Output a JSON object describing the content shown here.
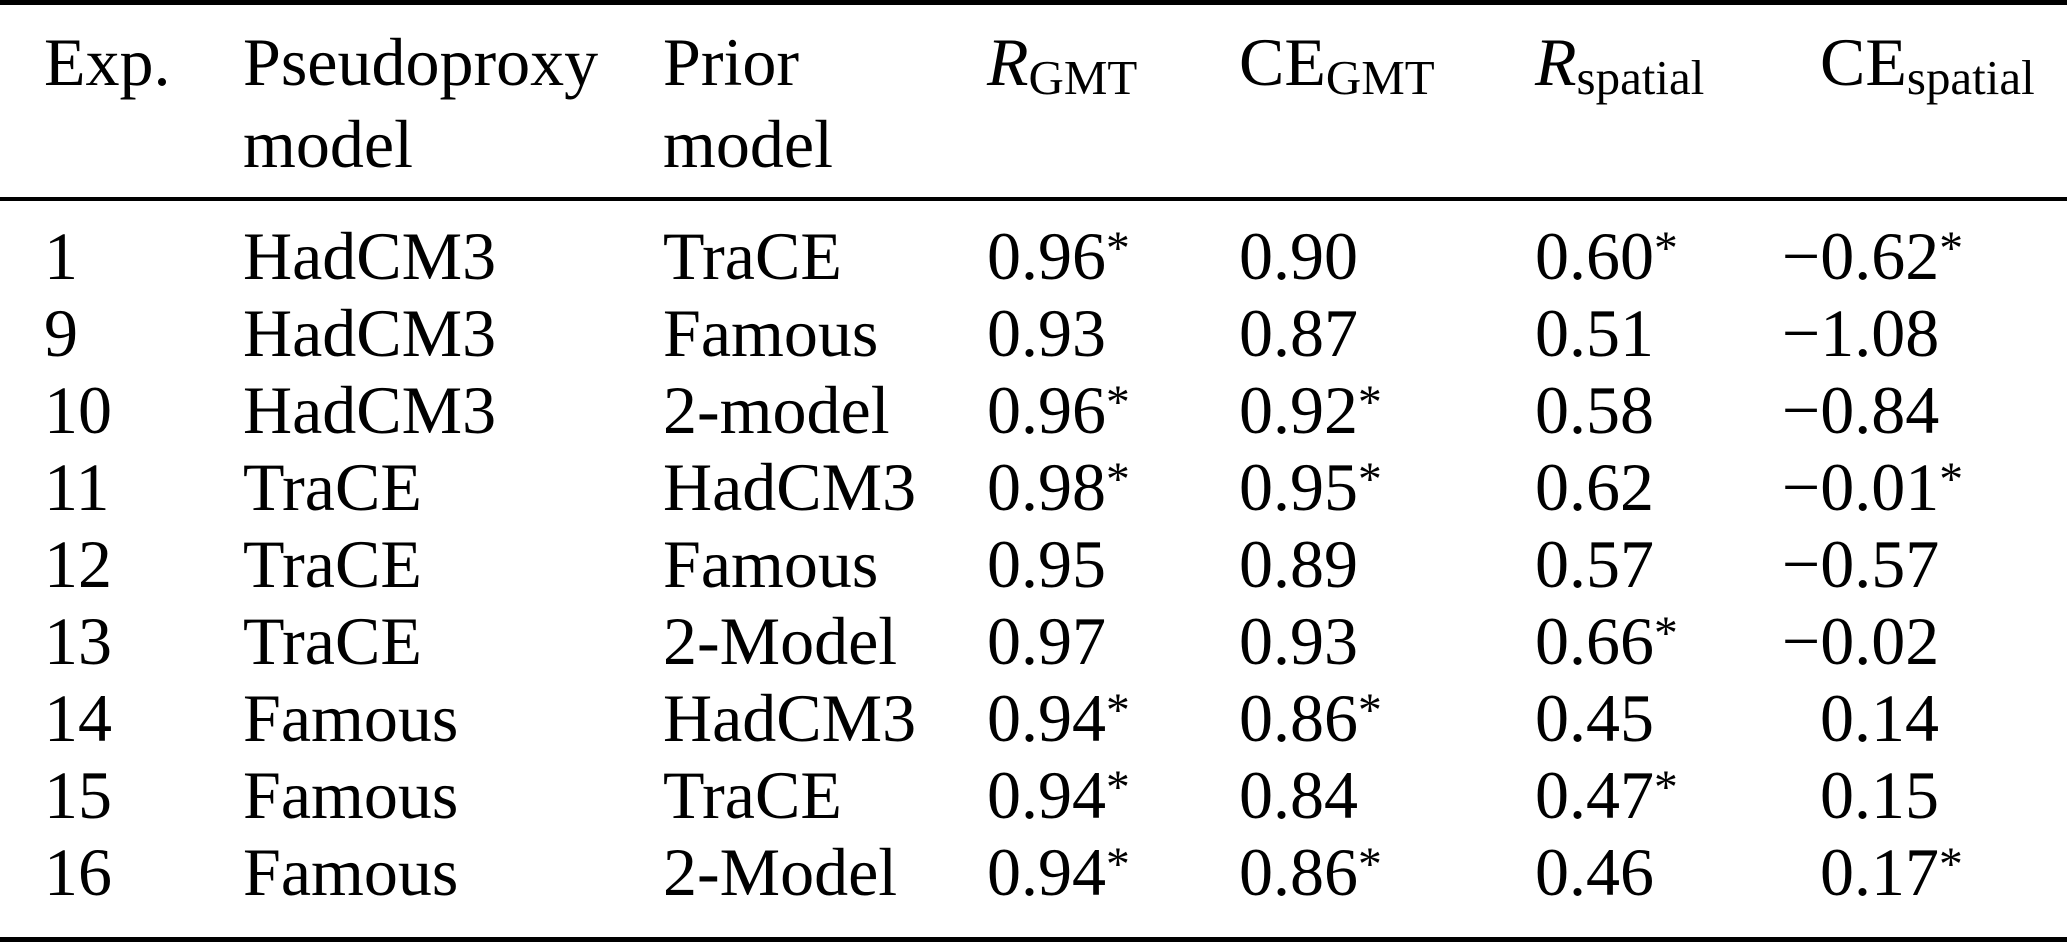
{
  "colors": {
    "background": "#ffffff",
    "text": "#000000",
    "rule": "#000000"
  },
  "table": {
    "header": {
      "exp": "Exp.",
      "pseudoproxy": [
        "Pseudoproxy",
        "model"
      ],
      "prior": [
        "Prior",
        "model"
      ],
      "r_gmt": {
        "main": "R",
        "sub": "GMT"
      },
      "ce_gmt": {
        "main": "CE",
        "sub": "GMT"
      },
      "r_spatial": {
        "main": "R",
        "sub": "spatial"
      },
      "ce_spatial": {
        "main": "CE",
        "sub": "spatial"
      }
    }
  },
  "chart_data": {
    "type": "table",
    "columns": [
      "Exp.",
      "Pseudoproxy model",
      "Prior model",
      "R_GMT",
      "CE_GMT",
      "R_spatial",
      "CE_spatial"
    ],
    "rows": [
      [
        "1",
        "HadCM3",
        "TraCE",
        "0.96*",
        "0.90",
        "0.60*",
        "−0.62*"
      ],
      [
        "9",
        "HadCM3",
        "Famous",
        "0.93",
        "0.87",
        "0.51",
        "−1.08"
      ],
      [
        "10",
        "HadCM3",
        "2-model",
        "0.96*",
        "0.92*",
        "0.58",
        "−0.84"
      ],
      [
        "11",
        "TraCE",
        "HadCM3",
        "0.98*",
        "0.95*",
        "0.62",
        "−0.01*"
      ],
      [
        "12",
        "TraCE",
        "Famous",
        "0.95",
        "0.89",
        "0.57",
        "−0.57"
      ],
      [
        "13",
        "TraCE",
        "2-Model",
        "0.97",
        "0.93",
        "0.66*",
        "−0.02"
      ],
      [
        "14",
        "Famous",
        "HadCM3",
        "0.94*",
        "0.86*",
        "0.45",
        "0.14"
      ],
      [
        "15",
        "Famous",
        "TraCE",
        "0.94*",
        "0.84",
        "0.47*",
        "0.15"
      ],
      [
        "16",
        "Famous",
        "2-Model",
        "0.94*",
        "0.86*",
        "0.46",
        "0.17*"
      ]
    ]
  }
}
